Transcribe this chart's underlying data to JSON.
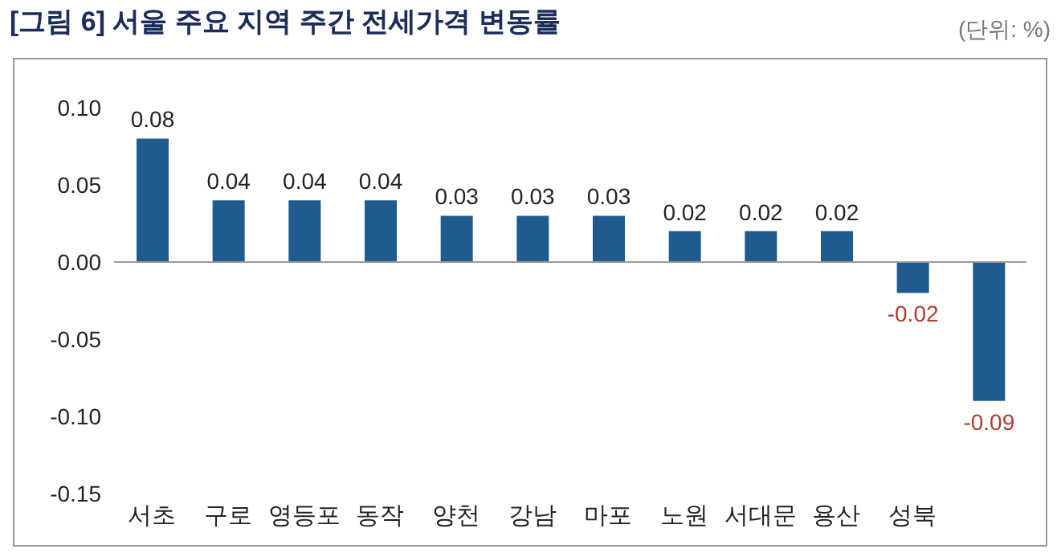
{
  "chart_data": {
    "type": "bar",
    "title": "[그림 6] 서울 주요 지역 주간 전세가격 변동률",
    "annotations": [
      "(단위: %)"
    ],
    "categories": [
      "서초",
      "구로",
      "영등포",
      "동작",
      "양천",
      "강남",
      "마포",
      "노원",
      "서대문",
      "용산",
      "성북",
      null
    ],
    "values": [
      0.08,
      0.04,
      0.04,
      0.04,
      0.03,
      0.03,
      0.03,
      0.02,
      0.02,
      0.02,
      -0.02,
      -0.09
    ],
    "color": "#1f5b8e",
    "ylim": [
      -0.15,
      0.1
    ],
    "yticks": [
      {
        "value": -0.15,
        "label": "-0.15"
      },
      {
        "value": -0.1,
        "label": "-0.10"
      },
      {
        "value": -0.05,
        "label": "-0.05"
      },
      {
        "value": 0,
        "label": "0.00"
      },
      {
        "value": 0.05,
        "label": "0.05"
      },
      {
        "value": 0.1,
        "label": "0.10"
      }
    ],
    "ref_lines": [
      {
        "axis": "y",
        "value": 0,
        "color": "#999999"
      }
    ],
    "data_labels": true,
    "grid": false,
    "legend": false
  }
}
